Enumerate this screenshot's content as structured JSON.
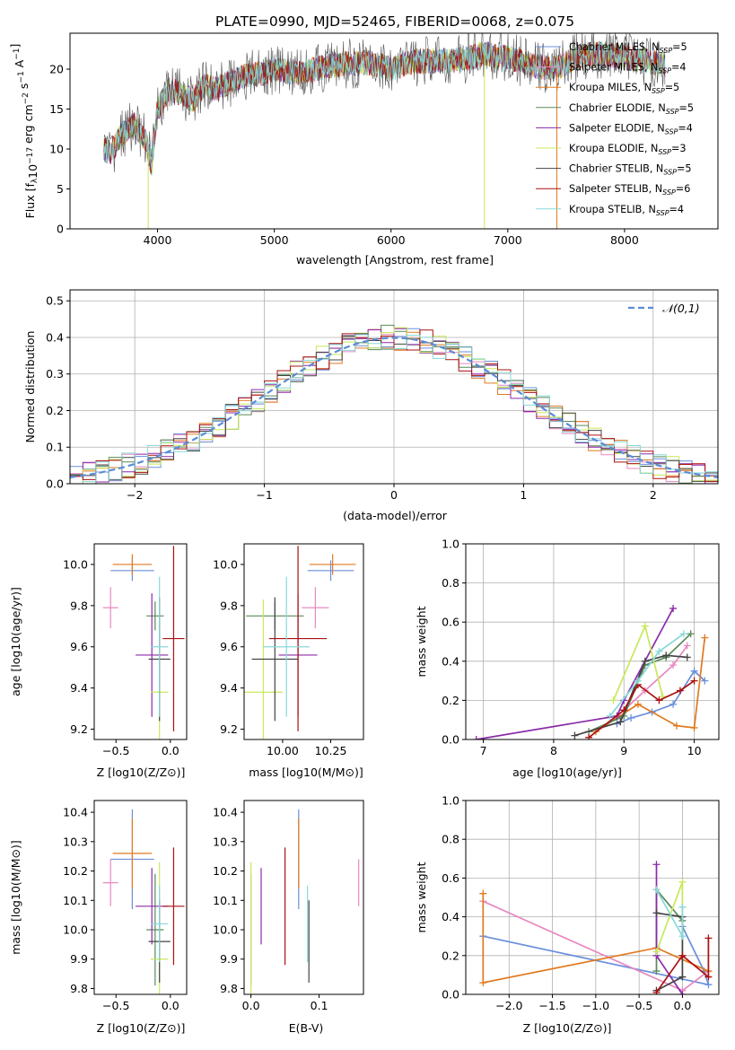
{
  "title": "PLATE=0990, MJD=52465, FIBERID=0068, z=0.075",
  "palette": {
    "chab_miles": "#6a8fdc",
    "salp_miles": "#e888c0",
    "krou_miles": "#e07a1f",
    "chab_elodie": "#5a8a5a",
    "salp_elodie": "#8a2aa8",
    "krou_elodie": "#c8e85a",
    "chab_stelib": "#444444",
    "salp_stelib": "#aa1111",
    "krou_stelib": "#88d8d8"
  },
  "legend_labels": [
    {
      "name": "Chabrier MILES, N",
      "sub": "SSP",
      "suffix": "=5",
      "color_key": "chab_miles"
    },
    {
      "name": "Salpeter MILES, N",
      "sub": "SSP",
      "suffix": "=4",
      "color_key": "salp_miles"
    },
    {
      "name": "Kroupa MILES, N",
      "sub": "SSP",
      "suffix": "=5",
      "color_key": "krou_miles"
    },
    {
      "name": "Chabrier ELODIE, N",
      "sub": "SSP",
      "suffix": "=5",
      "color_key": "chab_elodie"
    },
    {
      "name": "Salpeter ELODIE, N",
      "sub": "SSP",
      "suffix": "=4",
      "color_key": "salp_elodie"
    },
    {
      "name": "Kroupa ELODIE, N",
      "sub": "SSP",
      "suffix": "=3",
      "color_key": "krou_elodie"
    },
    {
      "name": "Chabrier STELIB, N",
      "sub": "SSP",
      "suffix": "=5",
      "color_key": "chab_stelib"
    },
    {
      "name": "Salpeter STELIB, N",
      "sub": "SSP",
      "suffix": "=6",
      "color_key": "salp_stelib"
    },
    {
      "name": "Kroupa STELIB, N",
      "sub": "SSP",
      "suffix": "=4",
      "color_key": "krou_stelib"
    }
  ],
  "chart_data": [
    {
      "type": "line",
      "panel": "spectrum",
      "xlabel": "wavelength [Angstrom, rest frame]",
      "ylabel": "Flux [f_λ 10^-17 erg cm^-2 s^-1 A^-1]",
      "xlim": [
        3250,
        8800
      ],
      "ylim": [
        0,
        24.5
      ],
      "xticks": [
        4000,
        5000,
        6000,
        7000,
        8000
      ],
      "yticks": [
        0,
        5,
        10,
        15,
        20
      ],
      "legend_position": "right",
      "spectrum_envelope": {
        "x": [
          3540,
          3600,
          3700,
          3800,
          3900,
          3950,
          4000,
          4100,
          4200,
          4300,
          4400,
          4500,
          4700,
          4900,
          5000,
          5200,
          5500,
          5800,
          5900,
          6000,
          6200,
          6500,
          6700,
          6800,
          6900,
          7000,
          7200,
          7400,
          7600,
          7800,
          8000,
          8200,
          8350
        ],
        "y": [
          10,
          9.5,
          12,
          13,
          11,
          8,
          15,
          17.5,
          17,
          16,
          18,
          17.5,
          19,
          19.5,
          20,
          19.5,
          20.5,
          20.8,
          20.5,
          20,
          21,
          21,
          21.5,
          22,
          21.5,
          21.5,
          20.5,
          20,
          21.5,
          22,
          21.5,
          21,
          20.5
        ]
      },
      "spikes_x": [
        3920,
        6800,
        7420
      ]
    },
    {
      "type": "histogram",
      "panel": "residuals",
      "xlabel": "(data-model)/error",
      "ylabel": "Normed distribution",
      "xlim": [
        -2.5,
        2.5
      ],
      "ylim": [
        0,
        0.53
      ],
      "xticks": [
        -2,
        -1,
        0,
        1,
        2
      ],
      "yticks": [
        0,
        0.1,
        0.2,
        0.3,
        0.4,
        0.5
      ],
      "grid": true,
      "legend": "𝒩(0,1)",
      "legend_position": "top-right",
      "bin_width": 0.1
    },
    {
      "type": "errorbar",
      "panel": "age_vs_Z",
      "xlabel": "Z [log10(Z/Z⊙)]",
      "ylabel": "age  [log10(age/yr)]",
      "xlim": [
        -0.7,
        0.15
      ],
      "ylim": [
        9.15,
        10.1
      ],
      "xticks": [
        -0.5,
        0.0
      ],
      "yticks": [
        9.2,
        9.4,
        9.6,
        9.8,
        10.0
      ],
      "points": [
        {
          "k": "chab_miles",
          "x": -0.35,
          "xe": 0.2,
          "y": 9.97,
          "ye": 0.05
        },
        {
          "k": "salp_miles",
          "x": -0.55,
          "xe": 0.07,
          "y": 9.79,
          "ye": 0.1
        },
        {
          "k": "krou_miles",
          "x": -0.35,
          "xe": 0.18,
          "y": 10.0,
          "ye": 0.05
        },
        {
          "k": "chab_elodie",
          "x": -0.14,
          "xe": 0.08,
          "y": 9.75,
          "ye": 0.07
        },
        {
          "k": "salp_elodie",
          "x": -0.17,
          "xe": 0.15,
          "y": 9.56,
          "ye": 0.3
        },
        {
          "k": "krou_elodie",
          "x": -0.1,
          "xe": 0.08,
          "y": 9.38,
          "ye": 0.45
        },
        {
          "k": "chab_stelib",
          "x": -0.1,
          "xe": 0.1,
          "y": 9.54,
          "ye": 0.3
        },
        {
          "k": "salp_stelib",
          "x": 0.03,
          "xe": 0.1,
          "y": 9.64,
          "ye": 0.45
        },
        {
          "k": "krou_stelib",
          "x": -0.1,
          "xe": 0.08,
          "y": 9.6,
          "ye": 0.34
        }
      ]
    },
    {
      "type": "errorbar",
      "panel": "age_vs_mass",
      "xlabel": "mass [log10(M/M⊙)]",
      "ylabel": "",
      "xlim": [
        9.8,
        10.42
      ],
      "ylim": [
        9.15,
        10.1
      ],
      "xticks": [
        10.0,
        10.25
      ],
      "yticks": [
        9.2,
        9.4,
        9.6,
        9.8,
        10.0
      ],
      "points": [
        {
          "k": "chab_miles",
          "x": 10.25,
          "xe": 0.12,
          "y": 9.97,
          "ye": 0.05
        },
        {
          "k": "salp_miles",
          "x": 10.17,
          "xe": 0.07,
          "y": 9.79,
          "ye": 0.1
        },
        {
          "k": "krou_miles",
          "x": 10.26,
          "xe": 0.12,
          "y": 10.0,
          "ye": 0.05
        },
        {
          "k": "chab_elodie",
          "x": 9.96,
          "xe": 0.15,
          "y": 9.75,
          "ye": 0.07
        },
        {
          "k": "salp_elodie",
          "x": 10.08,
          "xe": 0.1,
          "y": 9.56,
          "ye": 0.3
        },
        {
          "k": "krou_elodie",
          "x": 9.9,
          "xe": 0.1,
          "y": 9.38,
          "ye": 0.45
        },
        {
          "k": "chab_stelib",
          "x": 9.96,
          "xe": 0.12,
          "y": 9.54,
          "ye": 0.3
        },
        {
          "k": "salp_stelib",
          "x": 10.08,
          "xe": 0.15,
          "y": 9.64,
          "ye": 0.45
        },
        {
          "k": "krou_stelib",
          "x": 10.02,
          "xe": 0.12,
          "y": 9.6,
          "ye": 0.34
        }
      ]
    },
    {
      "type": "line",
      "panel": "massweight_vs_age",
      "xlabel": "age  [log10(age/yr)]",
      "ylabel": "mass weight",
      "xlim": [
        6.75,
        10.35
      ],
      "ylim": [
        0,
        1.0
      ],
      "xticks": [
        7,
        8,
        9,
        10
      ],
      "yticks": [
        0,
        0.2,
        0.4,
        0.6,
        0.8,
        1.0
      ],
      "grid": true,
      "series": [
        {
          "k": "chab_miles",
          "x": [
            8.9,
            9.1,
            9.4,
            9.7,
            10.0,
            10.15
          ],
          "y": [
            0.08,
            0.11,
            0.14,
            0.18,
            0.35,
            0.3
          ]
        },
        {
          "k": "salp_miles",
          "x": [
            9.0,
            9.3,
            9.7,
            9.9
          ],
          "y": [
            0.15,
            0.25,
            0.38,
            0.48
          ]
        },
        {
          "k": "krou_miles",
          "x": [
            8.6,
            9.2,
            9.75,
            10.0,
            10.15
          ],
          "y": [
            0.04,
            0.18,
            0.07,
            0.06,
            0.52
          ]
        },
        {
          "k": "chab_elodie",
          "x": [
            8.5,
            9.0,
            9.3,
            9.6,
            9.95
          ],
          "y": [
            0.04,
            0.12,
            0.38,
            0.42,
            0.54
          ]
        },
        {
          "k": "salp_elodie",
          "x": [
            6.9,
            8.9,
            9.0,
            9.7
          ],
          "y": [
            0.0,
            0.12,
            0.2,
            0.67
          ]
        },
        {
          "k": "krou_elodie",
          "x": [
            8.85,
            9.3,
            9.55
          ],
          "y": [
            0.2,
            0.58,
            0.22
          ]
        },
        {
          "k": "chab_stelib",
          "x": [
            8.3,
            8.95,
            9.3,
            9.6,
            9.9
          ],
          "y": [
            0.02,
            0.09,
            0.4,
            0.43,
            0.42
          ]
        },
        {
          "k": "salp_stelib",
          "x": [
            8.5,
            9.0,
            9.2,
            9.5,
            9.8,
            10.0
          ],
          "y": [
            0.01,
            0.15,
            0.28,
            0.2,
            0.25,
            0.3
          ]
        },
        {
          "k": "krou_stelib",
          "x": [
            8.8,
            9.2,
            9.5,
            9.85
          ],
          "y": [
            0.12,
            0.3,
            0.45,
            0.54
          ]
        }
      ]
    },
    {
      "type": "errorbar",
      "panel": "mass_vs_Z",
      "xlabel": "Z [log10(Z/Z⊙)]",
      "ylabel": "mass [log10(M/M⊙)]",
      "xlim": [
        -0.7,
        0.15
      ],
      "ylim": [
        9.78,
        10.44
      ],
      "xticks": [
        -0.5,
        0.0
      ],
      "yticks": [
        9.8,
        9.9,
        10.0,
        10.1,
        10.2,
        10.3,
        10.4
      ],
      "points": [
        {
          "k": "chab_miles",
          "x": -0.35,
          "xe": 0.2,
          "y": 10.24,
          "ye": 0.17
        },
        {
          "k": "salp_miles",
          "x": -0.55,
          "xe": 0.07,
          "y": 10.16,
          "ye": 0.08
        },
        {
          "k": "krou_miles",
          "x": -0.35,
          "xe": 0.18,
          "y": 10.26,
          "ye": 0.12
        },
        {
          "k": "chab_elodie",
          "x": -0.14,
          "xe": 0.08,
          "y": 10.0,
          "ye": 0.19
        },
        {
          "k": "salp_elodie",
          "x": -0.17,
          "xe": 0.15,
          "y": 10.08,
          "ye": 0.13
        },
        {
          "k": "krou_elodie",
          "x": -0.1,
          "xe": 0.08,
          "y": 9.9,
          "ye": 0.33
        },
        {
          "k": "chab_stelib",
          "x": -0.1,
          "xe": 0.1,
          "y": 9.96,
          "ye": 0.14
        },
        {
          "k": "salp_stelib",
          "x": 0.03,
          "xe": 0.1,
          "y": 10.08,
          "ye": 0.2
        },
        {
          "k": "krou_stelib",
          "x": -0.1,
          "xe": 0.08,
          "y": 10.02,
          "ye": 0.13
        }
      ]
    },
    {
      "type": "errorbar",
      "panel": "mass_vs_EBV",
      "xlabel": "E(B-V)",
      "ylabel": "",
      "xlim": [
        -0.01,
        0.165
      ],
      "ylim": [
        9.78,
        10.44
      ],
      "xticks": [
        0.0,
        0.1
      ],
      "yticks": [
        9.8,
        9.9,
        10.0,
        10.1,
        10.2,
        10.3,
        10.4
      ],
      "points": [
        {
          "k": "chab_miles",
          "x": 0.07,
          "y": 10.24,
          "ye": 0.17
        },
        {
          "k": "salp_miles",
          "x": 0.158,
          "y": 10.16,
          "ye": 0.08
        },
        {
          "k": "krou_miles",
          "x": 0.07,
          "y": 10.26,
          "ye": 0.12
        },
        {
          "k": "chab_elodie",
          "x": 0.0,
          "y": 10.0,
          "ye": 0.19
        },
        {
          "k": "salp_elodie",
          "x": 0.015,
          "y": 10.08,
          "ye": 0.13
        },
        {
          "k": "krou_elodie",
          "x": 0.0,
          "y": 9.9,
          "ye": 0.33
        },
        {
          "k": "chab_stelib",
          "x": 0.085,
          "y": 9.96,
          "ye": 0.14
        },
        {
          "k": "salp_stelib",
          "x": 0.05,
          "y": 10.08,
          "ye": 0.2
        },
        {
          "k": "krou_stelib",
          "x": 0.083,
          "y": 10.02,
          "ye": 0.13
        }
      ]
    },
    {
      "type": "line",
      "panel": "massweight_vs_Z",
      "xlabel": "Z [log10(Z/Z⊙)]",
      "ylabel": "mass weight",
      "xlim": [
        -2.5,
        0.42
      ],
      "ylim": [
        0,
        1.0
      ],
      "xticks": [
        -2.0,
        -1.5,
        -1.0,
        -0.5,
        0.0
      ],
      "yticks": [
        0,
        0.2,
        0.4,
        0.6,
        0.8,
        1.0
      ],
      "grid": true,
      "series": [
        {
          "k": "chab_miles",
          "x": [
            -2.3,
            0.3,
            0.25,
            0.0
          ],
          "y": [
            0.3,
            0.05,
            0.12,
            0.35
          ]
        },
        {
          "k": "salp_miles",
          "x": [
            -2.3,
            0.0,
            0.3
          ],
          "y": [
            0.48,
            0.02,
            0.12
          ]
        },
        {
          "k": "krou_miles",
          "x": [
            -2.3,
            -2.3,
            -0.3,
            0.3
          ],
          "y": [
            0.52,
            0.06,
            0.24,
            0.12
          ]
        },
        {
          "k": "chab_elodie",
          "x": [
            -0.3,
            -0.3,
            0.0
          ],
          "y": [
            0.12,
            0.54,
            0.38
          ]
        },
        {
          "k": "salp_elodie",
          "x": [
            -0.3,
            -0.3,
            0.0
          ],
          "y": [
            0.67,
            0.2,
            0.0
          ]
        },
        {
          "k": "krou_elodie",
          "x": [
            -0.3,
            0.0,
            0.0
          ],
          "y": [
            0.22,
            0.58,
            0.2
          ]
        },
        {
          "k": "chab_stelib",
          "x": [
            -0.3,
            0.0,
            0.0,
            -0.3
          ],
          "y": [
            0.42,
            0.4,
            0.09,
            0.02
          ]
        },
        {
          "k": "salp_stelib",
          "x": [
            -0.3,
            0.0,
            0.3,
            0.3
          ],
          "y": [
            0.01,
            0.2,
            0.09,
            0.29
          ]
        },
        {
          "k": "krou_stelib",
          "x": [
            -0.3,
            0.0,
            0.0
          ],
          "y": [
            0.54,
            0.3,
            0.45
          ]
        }
      ]
    }
  ]
}
